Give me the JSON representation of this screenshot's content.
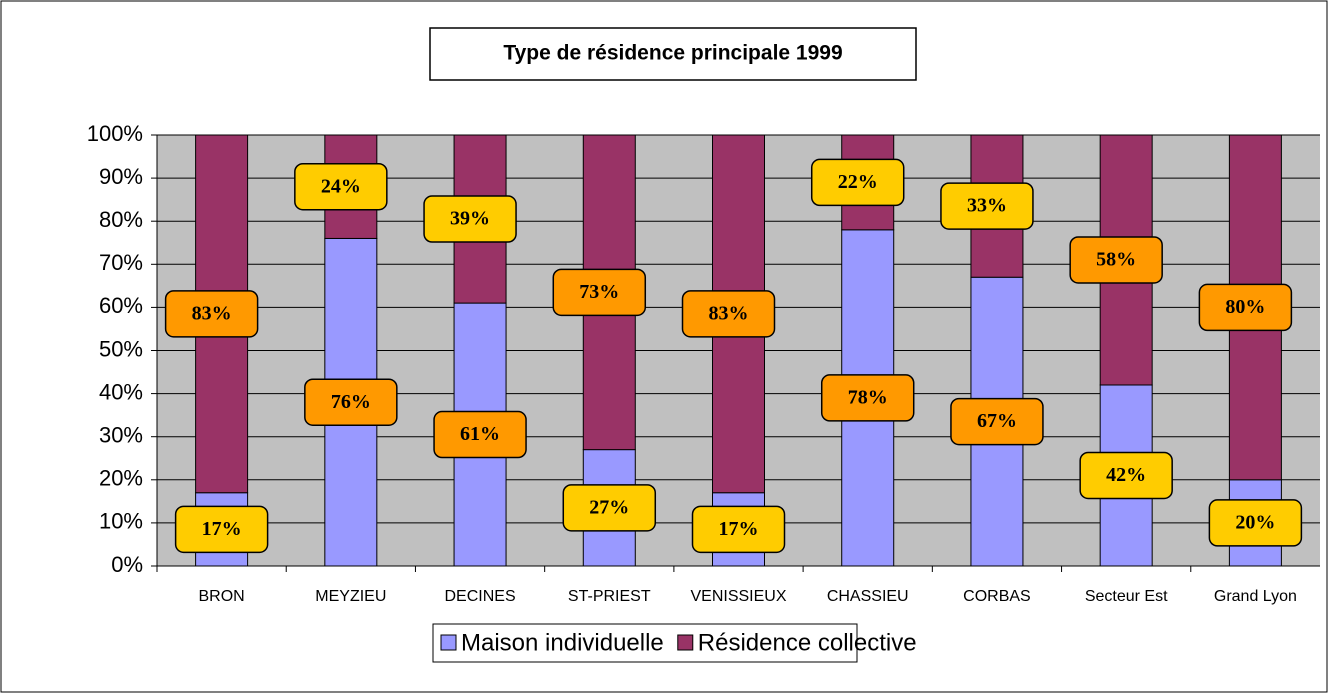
{
  "chart_data": {
    "type": "stacked_bar",
    "title": "Type de résidence principale 1999",
    "categories": [
      "BRON",
      "MEYZIEU",
      "DECINES",
      "ST-PRIEST",
      "VENISSIEUX",
      "CHASSIEU",
      "CORBAS",
      "Secteur Est",
      "Grand Lyon"
    ],
    "series": [
      {
        "name": "Maison individuelle",
        "color": "#9999ff",
        "values": [
          17,
          76,
          61,
          27,
          17,
          78,
          67,
          42,
          20
        ],
        "value_labels": [
          "17%",
          "76%",
          "61%",
          "27%",
          "17%",
          "78%",
          "67%",
          "42%",
          "20%"
        ]
      },
      {
        "name": "Résidence collective",
        "color": "#993366",
        "values": [
          83,
          24,
          39,
          73,
          83,
          22,
          33,
          58,
          80
        ],
        "value_labels": [
          "83%",
          "24%",
          "39%",
          "73%",
          "83%",
          "22%",
          "33%",
          "58%",
          "80%"
        ]
      }
    ],
    "ylim": [
      0,
      100
    ],
    "yticks": [
      {
        "value": 0,
        "label": "0%"
      },
      {
        "value": 10,
        "label": "10%"
      },
      {
        "value": 20,
        "label": "20%"
      },
      {
        "value": 30,
        "label": "30%"
      },
      {
        "value": 40,
        "label": "40%"
      },
      {
        "value": 50,
        "label": "50%"
      },
      {
        "value": 60,
        "label": "60%"
      },
      {
        "value": 70,
        "label": "70%"
      },
      {
        "value": 80,
        "label": "80%"
      },
      {
        "value": 90,
        "label": "90%"
      },
      {
        "value": 100,
        "label": "100%"
      }
    ],
    "grid": true,
    "legend": "bottom",
    "plot_background": "#c0c0c0",
    "label_colors": [
      "#ffcc00",
      "#ff9900"
    ]
  }
}
